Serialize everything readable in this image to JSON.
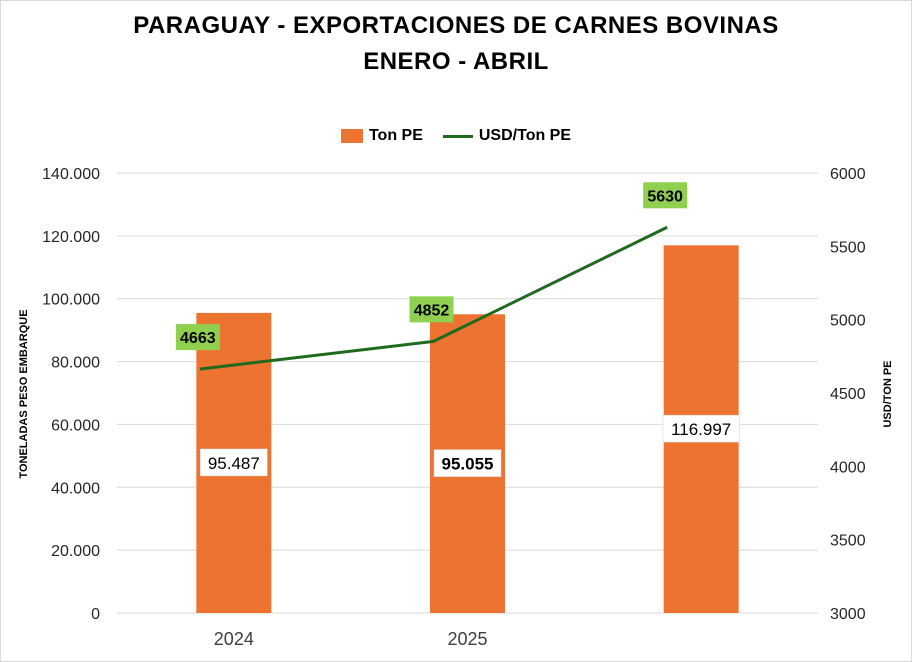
{
  "chart_data": {
    "type": "bar",
    "title": "PARAGUAY - EXPORTACIONES DE CARNES BOVINAS",
    "subtitle": "ENERO - ABRIL",
    "categories": [
      "2024",
      "2025",
      ""
    ],
    "series": [
      {
        "name": "Ton PE",
        "type": "bar",
        "axis": "left",
        "color": "#ED7331",
        "values": [
          95487,
          95055,
          116997
        ],
        "labels": [
          "95.487",
          "95.055",
          "116.997"
        ]
      },
      {
        "name": "USD/Ton PE",
        "type": "line",
        "axis": "right",
        "color": "#1E6B1E",
        "values": [
          4663,
          4852,
          5630
        ],
        "labels": [
          "4663",
          "4852",
          "5630"
        ]
      }
    ],
    "ylabel": "TONELADAS PESO EMBARQUE",
    "ylabel_right": "USD/TON PE",
    "ylim": [
      0,
      140000
    ],
    "ylim_right": [
      3000,
      6000
    ],
    "yticks": [
      {
        "value": 0,
        "label": "0"
      },
      {
        "value": 20000,
        "label": "20.000"
      },
      {
        "value": 40000,
        "label": "40.000"
      },
      {
        "value": 60000,
        "label": "60.000"
      },
      {
        "value": 80000,
        "label": "80.000"
      },
      {
        "value": 100000,
        "label": "100.000"
      },
      {
        "value": 120000,
        "label": "120.000"
      },
      {
        "value": 140000,
        "label": "140.000"
      }
    ],
    "yticks_right": [
      {
        "value": 3000,
        "label": "3000"
      },
      {
        "value": 3500,
        "label": "3500"
      },
      {
        "value": 4000,
        "label": "4000"
      },
      {
        "value": 4500,
        "label": "4500"
      },
      {
        "value": 5000,
        "label": "5000"
      },
      {
        "value": 5500,
        "label": "5500"
      },
      {
        "value": 6000,
        "label": "6000"
      }
    ],
    "grid": true,
    "legend_position": "top-center",
    "line_label_bg": "#8FD14F",
    "bold_bar_labels": [
      false,
      true,
      false
    ]
  }
}
